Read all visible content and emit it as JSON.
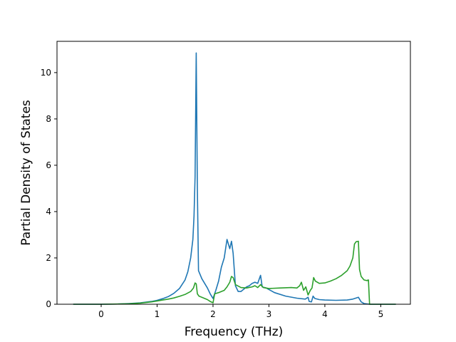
{
  "chart_data": {
    "type": "line",
    "title": "",
    "xlabel": "Frequency (THz)",
    "ylabel": "Partial Density of States",
    "xlim": [
      -0.79,
      5.53
    ],
    "ylim": [
      0,
      11.35
    ],
    "x_ticks": [
      0,
      1,
      2,
      3,
      4,
      5
    ],
    "x_tick_labels": [
      "0",
      "1",
      "2",
      "3",
      "4",
      "5"
    ],
    "y_ticks": [
      0,
      2,
      4,
      6,
      8,
      10
    ],
    "y_tick_labels": [
      "0",
      "2",
      "4",
      "6",
      "8",
      "10"
    ],
    "grid": false,
    "legend": "none",
    "series": [
      {
        "color": "#1f77b4",
        "points": [
          [
            -0.5,
            0.0
          ],
          [
            0.0,
            0.0
          ],
          [
            0.3,
            0.01
          ],
          [
            0.5,
            0.03
          ],
          [
            0.7,
            0.06
          ],
          [
            0.9,
            0.12
          ],
          [
            1.0,
            0.17
          ],
          [
            1.1,
            0.24
          ],
          [
            1.2,
            0.33
          ],
          [
            1.3,
            0.47
          ],
          [
            1.4,
            0.68
          ],
          [
            1.5,
            1.05
          ],
          [
            1.55,
            1.4
          ],
          [
            1.6,
            2.0
          ],
          [
            1.64,
            2.8
          ],
          [
            1.66,
            3.8
          ],
          [
            1.68,
            5.5
          ],
          [
            1.7,
            10.85
          ],
          [
            1.72,
            5.0
          ],
          [
            1.74,
            1.45
          ],
          [
            1.8,
            1.1
          ],
          [
            1.9,
            0.7
          ],
          [
            1.95,
            0.45
          ],
          [
            2.0,
            0.25
          ],
          [
            2.05,
            0.6
          ],
          [
            2.1,
            1.0
          ],
          [
            2.15,
            1.6
          ],
          [
            2.2,
            2.0
          ],
          [
            2.25,
            2.8
          ],
          [
            2.3,
            2.4
          ],
          [
            2.33,
            2.72
          ],
          [
            2.36,
            2.2
          ],
          [
            2.4,
            0.8
          ],
          [
            2.45,
            0.55
          ],
          [
            2.5,
            0.55
          ],
          [
            2.55,
            0.65
          ],
          [
            2.6,
            0.75
          ],
          [
            2.65,
            0.8
          ],
          [
            2.7,
            0.9
          ],
          [
            2.75,
            0.95
          ],
          [
            2.8,
            0.9
          ],
          [
            2.85,
            1.25
          ],
          [
            2.88,
            0.75
          ],
          [
            2.95,
            0.7
          ],
          [
            3.1,
            0.5
          ],
          [
            3.3,
            0.35
          ],
          [
            3.5,
            0.26
          ],
          [
            3.65,
            0.22
          ],
          [
            3.7,
            0.3
          ],
          [
            3.72,
            0.12
          ],
          [
            3.76,
            0.1
          ],
          [
            3.79,
            0.35
          ],
          [
            3.82,
            0.25
          ],
          [
            3.9,
            0.2
          ],
          [
            4.0,
            0.18
          ],
          [
            4.2,
            0.17
          ],
          [
            4.4,
            0.18
          ],
          [
            4.5,
            0.22
          ],
          [
            4.55,
            0.26
          ],
          [
            4.6,
            0.3
          ],
          [
            4.65,
            0.1
          ],
          [
            4.7,
            0.03
          ],
          [
            4.8,
            0.0
          ],
          [
            5.0,
            0.0
          ],
          [
            5.27,
            0.0
          ]
        ]
      },
      {
        "color": "#2ca02c",
        "points": [
          [
            -0.5,
            0.0
          ],
          [
            0.0,
            0.0
          ],
          [
            0.3,
            0.01
          ],
          [
            0.5,
            0.02
          ],
          [
            0.7,
            0.05
          ],
          [
            0.9,
            0.1
          ],
          [
            1.0,
            0.14
          ],
          [
            1.1,
            0.18
          ],
          [
            1.2,
            0.22
          ],
          [
            1.3,
            0.27
          ],
          [
            1.4,
            0.34
          ],
          [
            1.5,
            0.42
          ],
          [
            1.6,
            0.55
          ],
          [
            1.65,
            0.7
          ],
          [
            1.68,
            0.92
          ],
          [
            1.7,
            0.88
          ],
          [
            1.72,
            0.45
          ],
          [
            1.75,
            0.35
          ],
          [
            1.8,
            0.3
          ],
          [
            1.9,
            0.2
          ],
          [
            1.95,
            0.12
          ],
          [
            2.0,
            0.06
          ],
          [
            2.03,
            0.45
          ],
          [
            2.1,
            0.5
          ],
          [
            2.15,
            0.55
          ],
          [
            2.2,
            0.6
          ],
          [
            2.25,
            0.75
          ],
          [
            2.3,
            0.95
          ],
          [
            2.33,
            1.2
          ],
          [
            2.36,
            1.15
          ],
          [
            2.4,
            0.85
          ],
          [
            2.5,
            0.72
          ],
          [
            2.6,
            0.7
          ],
          [
            2.7,
            0.75
          ],
          [
            2.75,
            0.8
          ],
          [
            2.8,
            0.72
          ],
          [
            2.85,
            0.85
          ],
          [
            2.9,
            0.72
          ],
          [
            3.0,
            0.68
          ],
          [
            3.2,
            0.7
          ],
          [
            3.4,
            0.72
          ],
          [
            3.5,
            0.7
          ],
          [
            3.55,
            0.8
          ],
          [
            3.58,
            0.95
          ],
          [
            3.62,
            0.6
          ],
          [
            3.66,
            0.75
          ],
          [
            3.7,
            0.4
          ],
          [
            3.74,
            0.6
          ],
          [
            3.77,
            0.7
          ],
          [
            3.8,
            1.15
          ],
          [
            3.83,
            1.0
          ],
          [
            3.9,
            0.9
          ],
          [
            4.0,
            0.92
          ],
          [
            4.1,
            1.0
          ],
          [
            4.2,
            1.1
          ],
          [
            4.3,
            1.25
          ],
          [
            4.4,
            1.45
          ],
          [
            4.45,
            1.65
          ],
          [
            4.5,
            2.0
          ],
          [
            4.53,
            2.6
          ],
          [
            4.56,
            2.7
          ],
          [
            4.6,
            2.72
          ],
          [
            4.62,
            1.5
          ],
          [
            4.65,
            1.2
          ],
          [
            4.7,
            1.05
          ],
          [
            4.75,
            1.02
          ],
          [
            4.78,
            1.05
          ],
          [
            4.8,
            0.0
          ],
          [
            4.9,
            0.0
          ],
          [
            5.27,
            0.0
          ]
        ]
      }
    ]
  }
}
